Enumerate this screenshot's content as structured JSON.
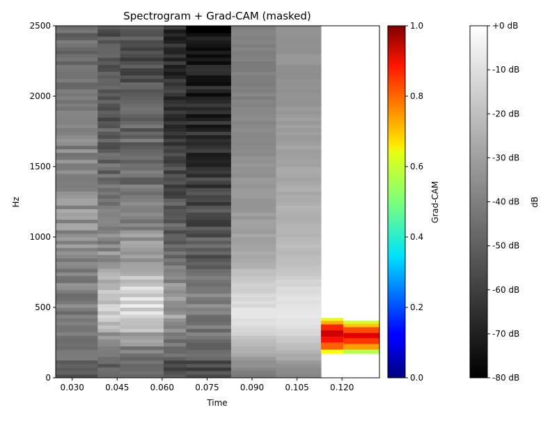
{
  "chart_data": {
    "type": "heatmap",
    "title": "Spectrogram + Grad-CAM (masked)",
    "xlabel": "Time",
    "ylabel": "Hz",
    "xlim": [
      0.0245,
      0.1325
    ],
    "ylim": [
      0,
      2500
    ],
    "x_ticks": [
      0.03,
      0.045,
      0.06,
      0.075,
      0.09,
      0.105,
      0.12
    ],
    "x_tick_labels": [
      "0.030",
      "0.045",
      "0.060",
      "0.075",
      "0.090",
      "0.105",
      "0.120"
    ],
    "y_ticks": [
      0,
      500,
      1000,
      1500,
      2000,
      2500
    ],
    "y_tick_labels": [
      "0",
      "500",
      "1000",
      "1500",
      "2000",
      "2500"
    ],
    "frame_edges": [
      0.0245,
      0.0315,
      0.0385,
      0.046,
      0.0535,
      0.0605,
      0.068,
      0.0755,
      0.083,
      0.0905,
      0.098,
      0.1055,
      0.113,
      0.1205,
      0.1325
    ],
    "frame_db_levels": [
      [
        -50,
        -45,
        -40,
        -38,
        -36,
        -34,
        -34,
        -35,
        -38,
        -40,
        -42,
        -44,
        -46
      ],
      [
        -52,
        -40,
        -18,
        -20,
        -34,
        -38,
        -46,
        -48,
        -50,
        -52,
        -54,
        -54,
        -55
      ],
      [
        -50,
        -40,
        -12,
        -14,
        -32,
        -36,
        -44,
        -46,
        -48,
        -50,
        -53,
        -54,
        -55
      ],
      [
        -56,
        -48,
        -30,
        -34,
        -44,
        -50,
        -54,
        -58,
        -60,
        -62,
        -64,
        -66,
        -68
      ],
      [
        -58,
        -50,
        -40,
        -42,
        -50,
        -54,
        -58,
        -62,
        -66,
        -68,
        -70,
        -74,
        -74
      ],
      [
        -44,
        -22,
        -8,
        -14,
        -26,
        -30,
        -32,
        -34,
        -36,
        -38,
        -40,
        -40,
        -40
      ],
      [
        -40,
        -20,
        -6,
        -12,
        -20,
        -24,
        -26,
        -28,
        -30,
        -32,
        -34,
        -34,
        -34
      ],
      [
        null,
        null,
        null,
        null,
        null,
        null,
        null,
        null,
        null,
        null,
        null,
        null,
        null
      ],
      [
        null,
        null,
        null,
        null,
        null,
        null,
        null,
        null,
        null,
        null,
        null,
        null,
        null
      ]
    ],
    "gradcam_masked_region": {
      "columns": [
        {
          "t_start": 0.113,
          "t_end": 0.1205,
          "bands": [
            {
              "hz": [
                170,
                200
              ],
              "v": 0.62
            },
            {
              "hz": [
                200,
                250
              ],
              "v": 0.78
            },
            {
              "hz": [
                250,
                290
              ],
              "v": 0.86
            },
            {
              "hz": [
                290,
                340
              ],
              "v": 0.92
            },
            {
              "hz": [
                340,
                380
              ],
              "v": 0.84
            },
            {
              "hz": [
                380,
                405
              ],
              "v": 0.7
            },
            {
              "hz": [
                405,
                425
              ],
              "v": 0.6
            }
          ]
        },
        {
          "t_start": 0.1205,
          "t_end": 0.1325,
          "bands": [
            {
              "hz": [
                170,
                200
              ],
              "v": 0.55
            },
            {
              "hz": [
                200,
                240
              ],
              "v": 0.72
            },
            {
              "hz": [
                240,
                280
              ],
              "v": 0.82
            },
            {
              "hz": [
                280,
                320
              ],
              "v": 0.9
            },
            {
              "hz": [
                320,
                360
              ],
              "v": 0.8
            },
            {
              "hz": [
                360,
                385
              ],
              "v": 0.68
            },
            {
              "hz": [
                385,
                405
              ],
              "v": 0.58
            }
          ]
        }
      ]
    },
    "colorbars": [
      {
        "label": "Grad-CAM",
        "colormap": "jet",
        "range": [
          0.0,
          1.0
        ],
        "tick_labels": [
          "0.0",
          "0.2",
          "0.4",
          "0.6",
          "0.8",
          "1.0"
        ]
      },
      {
        "label": "dB",
        "colormap": "gray",
        "range": [
          -80,
          0
        ],
        "tick_labels": [
          "-80 dB",
          "-70 dB",
          "-60 dB",
          "-50 dB",
          "-40 dB",
          "-30 dB",
          "-20 dB",
          "-10 dB",
          "+0 dB"
        ]
      }
    ],
    "grid": false
  }
}
